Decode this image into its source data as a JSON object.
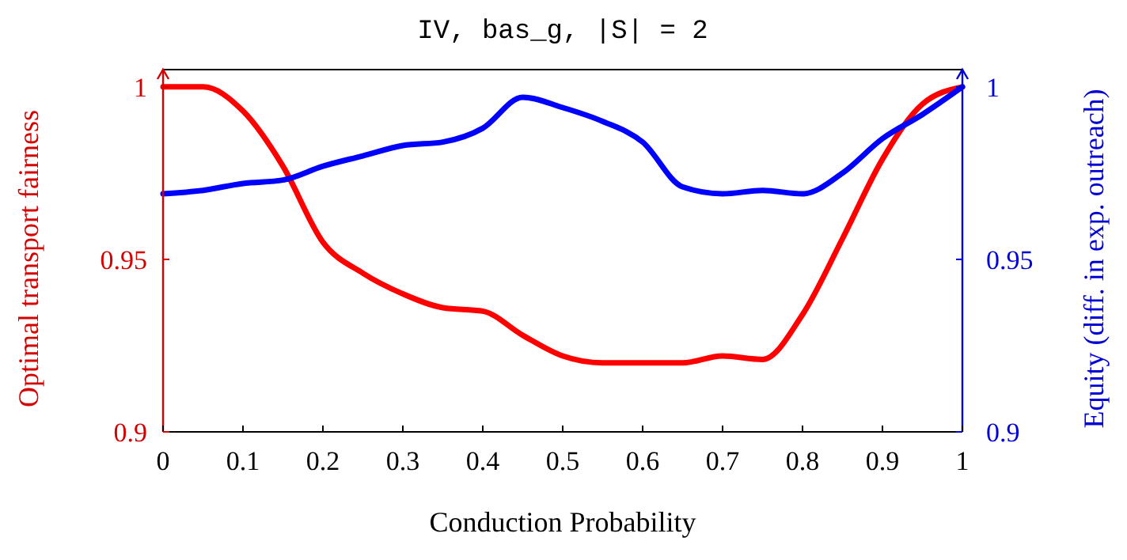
{
  "chart_data": {
    "type": "line",
    "title": "IV, bas_g, |S| = 2",
    "xlabel": "Conduction Probability",
    "ylabel": "Optimal transport fairness",
    "y2label": "Equity (diff. in exp. outreach)",
    "x": [
      0,
      0.05,
      0.1,
      0.15,
      0.2,
      0.25,
      0.3,
      0.35,
      0.4,
      0.45,
      0.5,
      0.55,
      0.6,
      0.65,
      0.7,
      0.75,
      0.8,
      0.85,
      0.9,
      0.95,
      1
    ],
    "series": [
      {
        "color": "#ff0000",
        "values": [
          1.0,
          1.0,
          0.993,
          0.977,
          0.955,
          0.946,
          0.94,
          0.936,
          0.935,
          0.928,
          0.922,
          0.92,
          0.92,
          0.92,
          0.922,
          0.921,
          0.934,
          0.956,
          0.979,
          0.995,
          1.0
        ]
      },
      {
        "color": "#0000ff",
        "axis": "y2",
        "values": [
          0.969,
          0.97,
          0.972,
          0.973,
          0.977,
          0.98,
          0.983,
          0.984,
          0.988,
          0.997,
          0.994,
          0.99,
          0.984,
          0.971,
          0.969,
          0.97,
          0.969,
          0.975,
          0.985,
          0.992,
          1.0
        ]
      }
    ],
    "xlim": [
      0,
      1
    ],
    "xticks": [
      0,
      0.1,
      0.2,
      0.3,
      0.4,
      0.5,
      0.6,
      0.7,
      0.8,
      0.9,
      1
    ],
    "ylim": [
      0.9,
      1.005
    ],
    "yticks": [
      0.9,
      0.95,
      1
    ],
    "y2lim": [
      0.9,
      1.005
    ],
    "y2ticks": [
      0.9,
      0.95,
      1
    ],
    "grid": false,
    "marker": "none",
    "line_style": "solid"
  }
}
